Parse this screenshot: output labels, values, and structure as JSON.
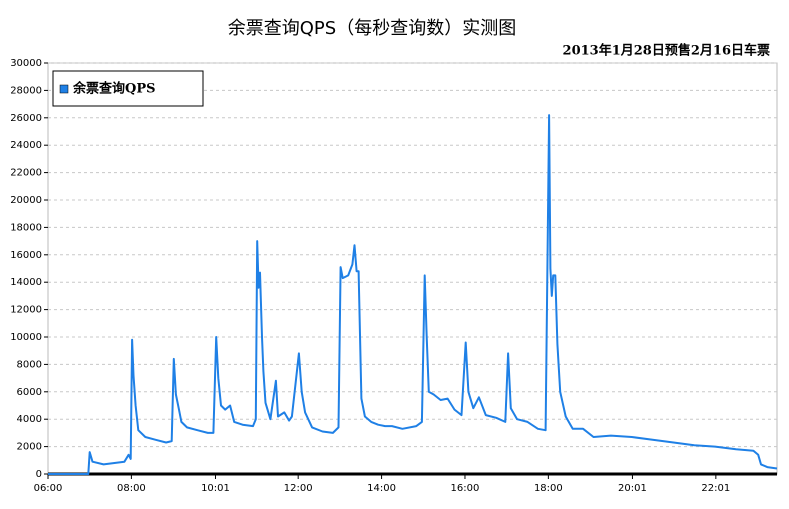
{
  "chart_data": {
    "type": "line",
    "title": "余票查询QPS（每秒查询数）实测图",
    "subtitle": "2013年1月28日预售2月16日车票",
    "x": [
      "06:00",
      "06:58",
      "07:00",
      "07:04",
      "07:20",
      "07:50",
      "07:56",
      "07:59",
      "08:01",
      "08:03",
      "08:06",
      "08:10",
      "08:20",
      "08:35",
      "08:50",
      "08:58",
      "09:01",
      "09:04",
      "09:08",
      "09:12",
      "09:20",
      "09:35",
      "09:50",
      "09:58",
      "10:02",
      "10:05",
      "10:09",
      "10:15",
      "10:22",
      "10:28",
      "10:40",
      "10:55",
      "10:59",
      "11:01",
      "11:03",
      "11:05",
      "11:08",
      "11:10",
      "11:13",
      "11:20",
      "11:28",
      "11:31",
      "11:40",
      "11:47",
      "11:51",
      "12:01",
      "12:05",
      "12:10",
      "12:20",
      "12:35",
      "12:50",
      "12:58",
      "13:01",
      "13:04",
      "13:12",
      "13:18",
      "13:21",
      "13:24",
      "13:27",
      "13:31",
      "13:36",
      "13:45",
      "13:55",
      "14:05",
      "14:15",
      "14:30",
      "14:50",
      "14:58",
      "15:02",
      "15:05",
      "15:08",
      "15:15",
      "15:25",
      "15:35",
      "15:45",
      "15:55",
      "16:01",
      "16:05",
      "16:12",
      "16:20",
      "16:30",
      "16:45",
      "16:58",
      "17:02",
      "17:06",
      "17:15",
      "17:30",
      "17:45",
      "17:56",
      "18:01",
      "18:03",
      "18:05",
      "18:07",
      "18:10",
      "18:13",
      "18:17",
      "18:25",
      "18:35",
      "18:50",
      "19:05",
      "19:30",
      "20:00",
      "20:30",
      "21:00",
      "21:30",
      "22:00",
      "22:30",
      "22:55",
      "23:02",
      "23:06",
      "23:15",
      "23:29"
    ],
    "series": [
      {
        "name": "余票查询QPS",
        "color": "#1f80e6",
        "values": [
          0,
          0,
          1600,
          900,
          700,
          900,
          1400,
          1100,
          9800,
          7200,
          5000,
          3200,
          2700,
          2500,
          2300,
          2400,
          8400,
          5800,
          4800,
          3800,
          3400,
          3200,
          3000,
          3000,
          10000,
          7000,
          5000,
          4700,
          5000,
          3800,
          3600,
          3500,
          4000,
          17000,
          13600,
          14700,
          10000,
          7500,
          5200,
          4000,
          6800,
          4200,
          4500,
          3900,
          4200,
          8800,
          6000,
          4500,
          3400,
          3100,
          3000,
          3400,
          15100,
          14300,
          14500,
          15300,
          16700,
          14800,
          14800,
          5500,
          4200,
          3800,
          3600,
          3500,
          3500,
          3300,
          3500,
          3800,
          14500,
          10000,
          6000,
          5800,
          5400,
          5500,
          4700,
          4300,
          9600,
          6000,
          4800,
          5600,
          4300,
          4100,
          3800,
          8800,
          4800,
          4000,
          3800,
          3300,
          3200,
          26200,
          15000,
          13000,
          14500,
          14500,
          9500,
          6000,
          4200,
          3300,
          3300,
          2700,
          2800,
          2700,
          2500,
          2300,
          2100,
          2000,
          1800,
          1700,
          1400,
          700,
          500,
          400
        ]
      }
    ],
    "xlim": [
      "06:00",
      "23:29"
    ],
    "xticks": [
      "06:00",
      "08:00",
      "10:01",
      "12:00",
      "14:00",
      "16:00",
      "18:00",
      "20:01",
      "22:01"
    ],
    "ylim": [
      0,
      30000
    ],
    "yticks": [
      0,
      2000,
      4000,
      6000,
      8000,
      10000,
      12000,
      14000,
      16000,
      18000,
      20000,
      22000,
      24000,
      26000,
      28000,
      30000
    ],
    "grid": true,
    "legend": "top-left"
  }
}
